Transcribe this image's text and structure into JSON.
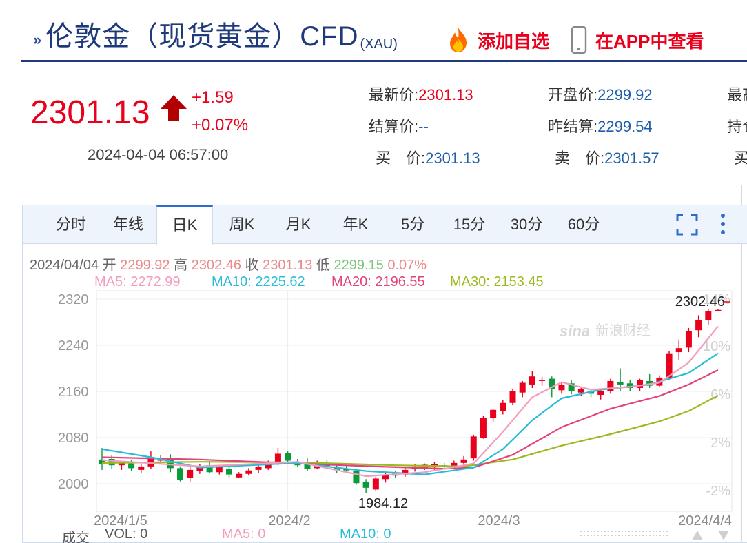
{
  "header": {
    "title": "伦敦金（现货黄金）CFD",
    "title_sub": "(XAU)",
    "add_favorite": "添加自选",
    "view_in_app": "在APP中查看",
    "accent": "#1f3a7a",
    "red": "#e8001c"
  },
  "quote": {
    "price": "2301.13",
    "change": "+1.59",
    "change_pct": "+0.07%",
    "timestamp": "2024-04-04 06:57:00"
  },
  "info": {
    "latest_label": "最新价:",
    "latest_value": "2301.13",
    "open_label": "开盘价:",
    "open_value": "2299.92",
    "high_label_partial": "最高",
    "settle_label": "结算价:",
    "settle_value": "--",
    "prev_settle_label": "昨结算:",
    "prev_settle_value": "2299.54",
    "hold_label_partial": "持仓",
    "bid_label": "买　价:",
    "bid_value": "2301.13",
    "ask_label": "卖　价:",
    "ask_value": "2301.57",
    "buy_partial": "买"
  },
  "tabs": [
    "分时",
    "年线",
    "日K",
    "周K",
    "月K",
    "年K",
    "5分",
    "15分",
    "30分",
    "60分"
  ],
  "active_tab": "日K",
  "ohlc": {
    "date": "2024/04/04",
    "open_label": "开",
    "open": "2299.92",
    "high_label": "高",
    "high": "2302.46",
    "close_label": "收",
    "close": "2301.13",
    "low_label": "低",
    "low": "2299.15",
    "pct": "0.07%"
  },
  "ma": {
    "ma5": "MA5: 2272.99",
    "ma10": "MA10: 2225.62",
    "ma20": "MA20: 2196.55",
    "ma30": "MA30: 2153.45"
  },
  "chart_data": {
    "type": "candlestick",
    "y_ticks": [
      "2320",
      "2240",
      "2160",
      "2080",
      "2000"
    ],
    "y_tick_values": [
      2320,
      2240,
      2160,
      2080,
      2000
    ],
    "pct_ticks": [
      "14%",
      "10%",
      "6%",
      "2%",
      "-2%"
    ],
    "ylim": [
      1980,
      2325
    ],
    "x_labels": [
      "2024/1/5",
      "2024/2",
      "2024/3",
      "2024/4/4"
    ],
    "x_label_indices": [
      0,
      19,
      40,
      63
    ],
    "max_annotation": "2302.46",
    "min_annotation": "1984.12",
    "watermark": "新浪财经",
    "candles": [
      {
        "o": 2042,
        "h": 2062,
        "l": 2024,
        "c": 2034
      },
      {
        "o": 2043,
        "h": 2049,
        "l": 2025,
        "c": 2032
      },
      {
        "o": 2032,
        "h": 2040,
        "l": 2024,
        "c": 2038
      },
      {
        "o": 2035,
        "h": 2042,
        "l": 2022,
        "c": 2027
      },
      {
        "o": 2024,
        "h": 2035,
        "l": 2018,
        "c": 2030
      },
      {
        "o": 2030,
        "h": 2056,
        "l": 2026,
        "c": 2046
      },
      {
        "o": 2040,
        "h": 2050,
        "l": 2034,
        "c": 2045
      },
      {
        "o": 2045,
        "h": 2051,
        "l": 2020,
        "c": 2027
      },
      {
        "o": 2027,
        "h": 2030,
        "l": 2004,
        "c": 2006
      },
      {
        "o": 2010,
        "h": 2030,
        "l": 2004,
        "c": 2024
      },
      {
        "o": 2022,
        "h": 2034,
        "l": 2017,
        "c": 2030
      },
      {
        "o": 2032,
        "h": 2039,
        "l": 2018,
        "c": 2020
      },
      {
        "o": 2020,
        "h": 2032,
        "l": 2016,
        "c": 2030
      },
      {
        "o": 2026,
        "h": 2034,
        "l": 2011,
        "c": 2016
      },
      {
        "o": 2011,
        "h": 2020,
        "l": 2010,
        "c": 2017
      },
      {
        "o": 2017,
        "h": 2027,
        "l": 2014,
        "c": 2023
      },
      {
        "o": 2024,
        "h": 2033,
        "l": 2019,
        "c": 2030
      },
      {
        "o": 2027,
        "h": 2040,
        "l": 2024,
        "c": 2034
      },
      {
        "o": 2035,
        "h": 2062,
        "l": 2032,
        "c": 2052
      },
      {
        "o": 2053,
        "h": 2056,
        "l": 2036,
        "c": 2040
      },
      {
        "o": 2036,
        "h": 2043,
        "l": 2030,
        "c": 2032
      },
      {
        "o": 2034,
        "h": 2044,
        "l": 2022,
        "c": 2025
      },
      {
        "o": 2027,
        "h": 2040,
        "l": 2025,
        "c": 2036
      },
      {
        "o": 2036,
        "h": 2041,
        "l": 2026,
        "c": 2031
      },
      {
        "o": 2030,
        "h": 2036,
        "l": 2019,
        "c": 2024
      },
      {
        "o": 2026,
        "h": 2032,
        "l": 2020,
        "c": 2023
      },
      {
        "o": 2022,
        "h": 2025,
        "l": 1998,
        "c": 2001
      },
      {
        "o": 2003,
        "h": 2008,
        "l": 1984,
        "c": 1993
      },
      {
        "o": 1990,
        "h": 2012,
        "l": 1988,
        "c": 2009
      },
      {
        "o": 2008,
        "h": 2018,
        "l": 2002,
        "c": 2016
      },
      {
        "o": 2018,
        "h": 2022,
        "l": 2010,
        "c": 2014
      },
      {
        "o": 2016,
        "h": 2028,
        "l": 2012,
        "c": 2024
      },
      {
        "o": 2025,
        "h": 2034,
        "l": 2021,
        "c": 2028
      },
      {
        "o": 2027,
        "h": 2035,
        "l": 2024,
        "c": 2033
      },
      {
        "o": 2031,
        "h": 2038,
        "l": 2024,
        "c": 2034
      },
      {
        "o": 2032,
        "h": 2036,
        "l": 2026,
        "c": 2029
      },
      {
        "o": 2030,
        "h": 2040,
        "l": 2026,
        "c": 2036
      },
      {
        "o": 2036,
        "h": 2048,
        "l": 2030,
        "c": 2042
      },
      {
        "o": 2044,
        "h": 2085,
        "l": 2040,
        "c": 2082
      },
      {
        "o": 2080,
        "h": 2118,
        "l": 2078,
        "c": 2114
      },
      {
        "o": 2114,
        "h": 2130,
        "l": 2108,
        "c": 2128
      },
      {
        "o": 2126,
        "h": 2145,
        "l": 2120,
        "c": 2140
      },
      {
        "o": 2140,
        "h": 2165,
        "l": 2136,
        "c": 2160
      },
      {
        "o": 2158,
        "h": 2178,
        "l": 2150,
        "c": 2175
      },
      {
        "o": 2172,
        "h": 2195,
        "l": 2166,
        "c": 2186
      },
      {
        "o": 2178,
        "h": 2185,
        "l": 2170,
        "c": 2180
      },
      {
        "o": 2182,
        "h": 2186,
        "l": 2150,
        "c": 2164
      },
      {
        "o": 2162,
        "h": 2175,
        "l": 2156,
        "c": 2172
      },
      {
        "o": 2174,
        "h": 2180,
        "l": 2155,
        "c": 2160
      },
      {
        "o": 2158,
        "h": 2166,
        "l": 2152,
        "c": 2164
      },
      {
        "o": 2160,
        "h": 2164,
        "l": 2150,
        "c": 2156
      },
      {
        "o": 2154,
        "h": 2162,
        "l": 2146,
        "c": 2160
      },
      {
        "o": 2160,
        "h": 2182,
        "l": 2156,
        "c": 2178
      },
      {
        "o": 2176,
        "h": 2200,
        "l": 2160,
        "c": 2172
      },
      {
        "o": 2174,
        "h": 2180,
        "l": 2160,
        "c": 2166
      },
      {
        "o": 2166,
        "h": 2182,
        "l": 2160,
        "c": 2180
      },
      {
        "o": 2178,
        "h": 2190,
        "l": 2166,
        "c": 2170
      },
      {
        "o": 2170,
        "h": 2188,
        "l": 2168,
        "c": 2184
      },
      {
        "o": 2184,
        "h": 2230,
        "l": 2180,
        "c": 2226
      },
      {
        "o": 2228,
        "h": 2250,
        "l": 2215,
        "c": 2235
      },
      {
        "o": 2236,
        "h": 2270,
        "l": 2228,
        "c": 2265
      },
      {
        "o": 2266,
        "h": 2292,
        "l": 2254,
        "c": 2284
      },
      {
        "o": 2284,
        "h": 2303,
        "l": 2276,
        "c": 2299
      },
      {
        "o": 2299.92,
        "h": 2302.46,
        "l": 2299.15,
        "c": 2301.13
      }
    ],
    "ma_lines": {
      "ma5": {
        "color": "#f29cbf",
        "points": [
          [
            0,
            2041
          ],
          [
            10,
            2030
          ],
          [
            20,
            2038
          ],
          [
            27,
            2013
          ],
          [
            33,
            2020
          ],
          [
            38,
            2035
          ],
          [
            41,
            2090
          ],
          [
            44,
            2150
          ],
          [
            47,
            2176
          ],
          [
            50,
            2163
          ],
          [
            54,
            2168
          ],
          [
            57,
            2175
          ],
          [
            60,
            2210
          ],
          [
            63,
            2273
          ]
        ]
      },
      "ma10": {
        "color": "#25bcd8",
        "points": [
          [
            0,
            2060
          ],
          [
            5,
            2046
          ],
          [
            10,
            2028
          ],
          [
            20,
            2036
          ],
          [
            27,
            2022
          ],
          [
            33,
            2016
          ],
          [
            38,
            2028
          ],
          [
            41,
            2060
          ],
          [
            44,
            2110
          ],
          [
            47,
            2148
          ],
          [
            51,
            2163
          ],
          [
            56,
            2172
          ],
          [
            60,
            2192
          ],
          [
            63,
            2226
          ]
        ]
      },
      "ma20": {
        "color": "#e2427c",
        "points": [
          [
            0,
            2046
          ],
          [
            10,
            2042
          ],
          [
            20,
            2035
          ],
          [
            28,
            2030
          ],
          [
            35,
            2026
          ],
          [
            38,
            2028
          ],
          [
            42,
            2050
          ],
          [
            47,
            2098
          ],
          [
            52,
            2130
          ],
          [
            57,
            2152
          ],
          [
            60,
            2172
          ],
          [
            63,
            2197
          ]
        ]
      },
      "ma30": {
        "color": "#9aba1e",
        "points": [
          [
            0,
            2036
          ],
          [
            10,
            2038
          ],
          [
            20,
            2037
          ],
          [
            30,
            2032
          ],
          [
            37,
            2030
          ],
          [
            42,
            2042
          ],
          [
            47,
            2066
          ],
          [
            52,
            2086
          ],
          [
            57,
            2108
          ],
          [
            60,
            2126
          ],
          [
            63,
            2153
          ]
        ]
      }
    }
  },
  "volume_bar": {
    "label": "成交",
    "vol": "VOL: 0",
    "ma5": "MA5: 0",
    "ma10": "MA10: 0"
  }
}
